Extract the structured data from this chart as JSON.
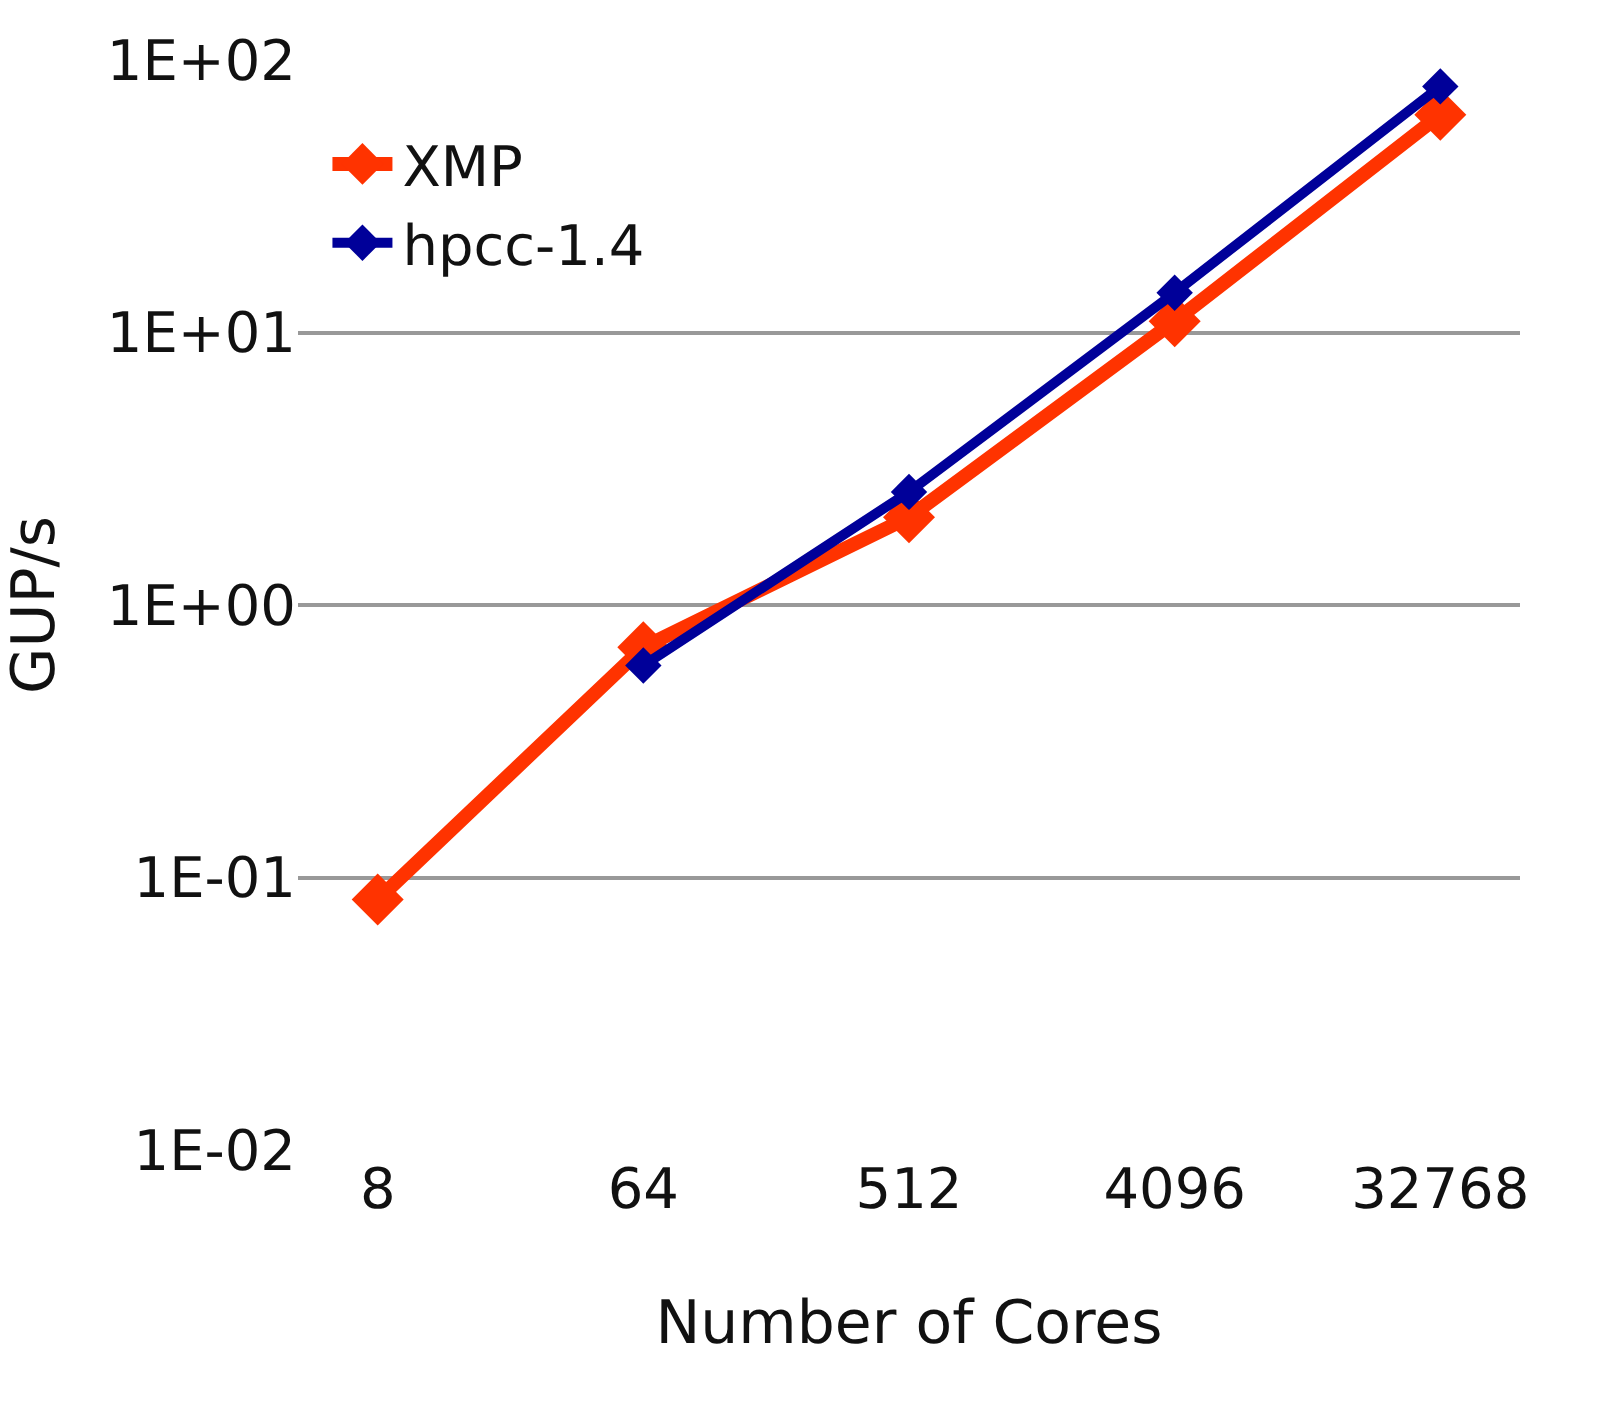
{
  "chart_data": {
    "type": "line",
    "xlabel": "Number of Cores",
    "ylabel": "GUP/s",
    "categories": [
      "8",
      "64",
      "512",
      "4096",
      "32768"
    ],
    "series": [
      {
        "name": "XMP",
        "color": "#ff3300",
        "values": [
          0.083,
          0.7,
          2.1,
          11,
          63
        ],
        "marker": "diamond"
      },
      {
        "name": "hpcc-1.4",
        "color": "#000099",
        "values": [
          null,
          0.6,
          2.6,
          14,
          80
        ],
        "marker": "diamond"
      }
    ],
    "log": "y",
    "ylim": [
      0.01,
      100
    ],
    "yticks": [
      {
        "value": 0.01,
        "label": "1E-02"
      },
      {
        "value": 0.1,
        "label": "1E-01"
      },
      {
        "value": 1,
        "label": "1E+00"
      },
      {
        "value": 10,
        "label": "1E+01"
      },
      {
        "value": 100,
        "label": "1E+02"
      }
    ],
    "grid": "y",
    "legend": "top left",
    "line_style": "solid"
  }
}
